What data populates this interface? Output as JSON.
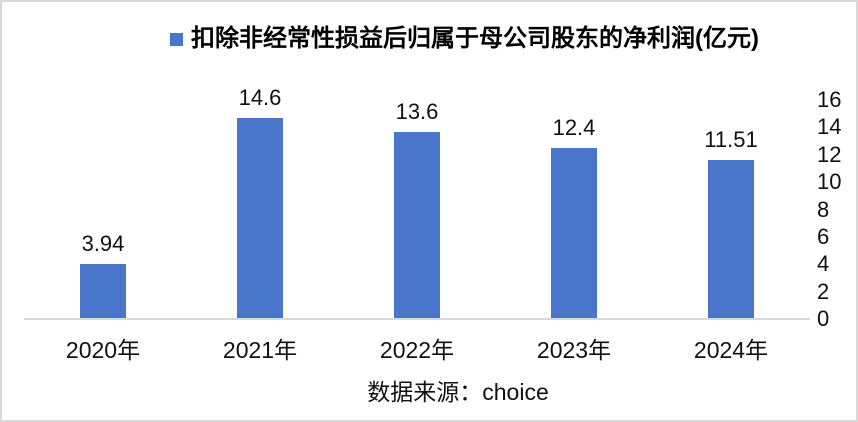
{
  "chart_data": {
    "type": "bar",
    "title": "扣除非经常性损益后归属于母公司股东的净利润(亿元)",
    "series_name": "扣除非经常性损益后归属于母公司股东的净利润(亿元)",
    "categories": [
      "2020年",
      "2021年",
      "2022年",
      "2023年",
      "2024年"
    ],
    "values": [
      3.94,
      14.6,
      13.6,
      12.4,
      11.51
    ],
    "value_labels": [
      "3.94",
      "14.6",
      "13.6",
      "12.4",
      "11.51"
    ],
    "xlabel": "",
    "ylabel": "",
    "ylim": [
      0,
      16
    ],
    "yticks": [
      0,
      2,
      4,
      6,
      8,
      10,
      12,
      14,
      16
    ],
    "ytick_side": "right",
    "grid": false,
    "legend_position": "top",
    "bar_color": "#4976CB",
    "axis_line_color": "#D9D9D9",
    "frame_color": "#D9D9D9",
    "source": "数据来源：choice"
  }
}
